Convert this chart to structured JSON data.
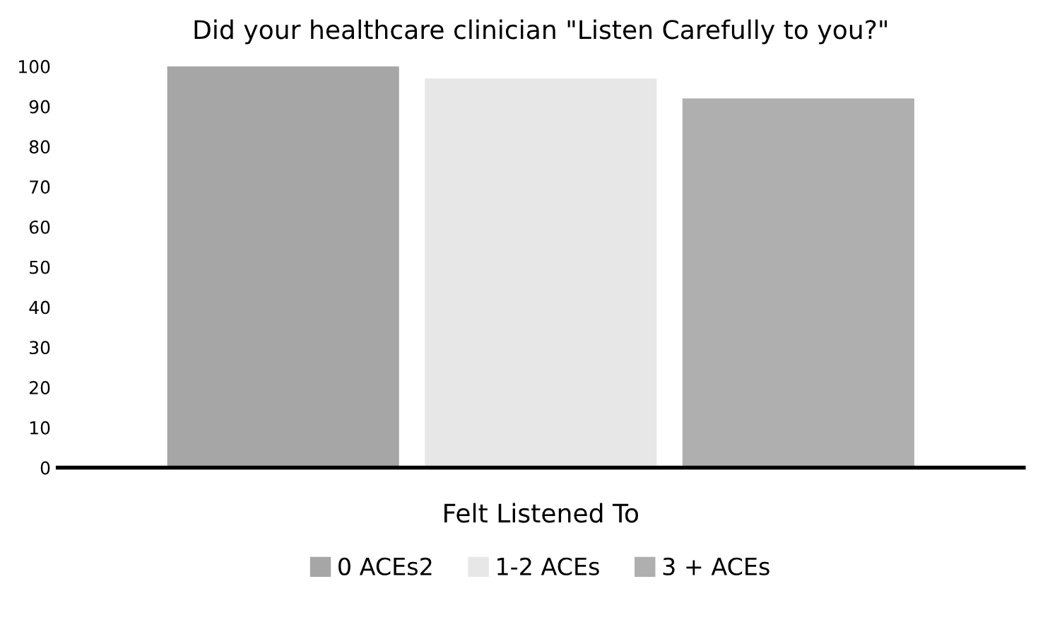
{
  "chart_data": {
    "type": "bar",
    "title": "Did your healthcare clinician \"Listen Carefully to you?\"",
    "categories": [
      "Felt Listened To"
    ],
    "series": [
      {
        "name": "0 ACEs2",
        "color": "#a6a6a6",
        "values": [
          100
        ]
      },
      {
        "name": "1-2 ACEs",
        "color": "#e7e7e7",
        "values": [
          97
        ]
      },
      {
        "name": "3 + ACEs",
        "color": "#afafaf",
        "values": [
          92
        ]
      }
    ],
    "ylim": [
      0,
      100
    ],
    "yticks": [
      0,
      10,
      20,
      30,
      40,
      50,
      60,
      70,
      80,
      90,
      100
    ],
    "grid": false,
    "legend": "bottom"
  }
}
